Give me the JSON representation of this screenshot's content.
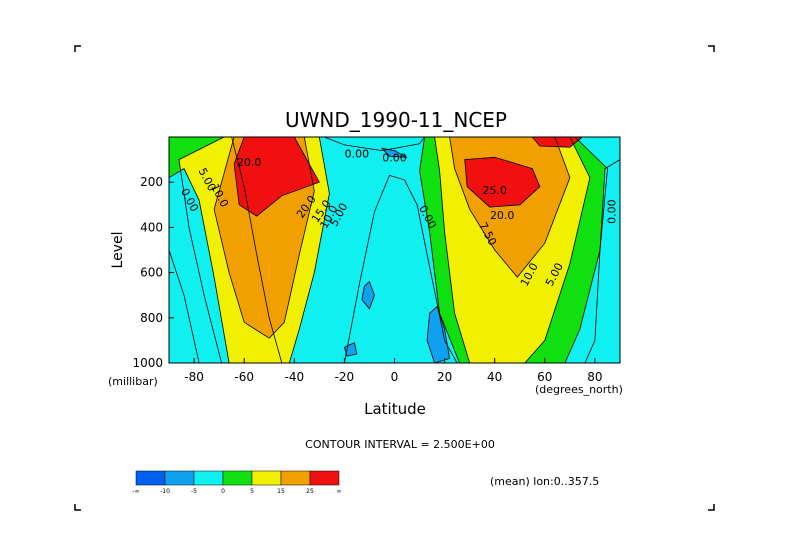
{
  "chart_data": {
    "type": "heatmap",
    "subtype": "filled-contour",
    "title": "UWND_1990-11_NCEP",
    "xlabel": "Latitude",
    "ylabel": "Level",
    "x_units": "(degrees_north)",
    "y_units": "(millibar)",
    "xlim": [
      -90,
      90
    ],
    "ylim": [
      1000,
      0
    ],
    "x_ticks": [
      "-80",
      "-60",
      "-40",
      "-20",
      "0",
      "20",
      "40",
      "60",
      "80"
    ],
    "y_ticks": [
      "200",
      "400",
      "600",
      "800",
      "1000"
    ],
    "contour_interval_text": "CONTOUR INTERVAL = 2.500E+00",
    "footer_text": "(mean) lon:0..357.5",
    "color_scale": {
      "colors": [
        "#0060f0",
        "#10a0f0",
        "#10f0f0",
        "#10e010",
        "#f0f000",
        "#f0a000",
        "#f01010"
      ],
      "tick_labels": [
        "-∞",
        "-10",
        "-5",
        "0",
        "5",
        "15",
        "25",
        "∞"
      ]
    },
    "contour_labels": [
      {
        "text": "0.00",
        "lat": -82,
        "level": 280,
        "angle": 62
      },
      {
        "text": "5.00",
        "lat": -75,
        "level": 190,
        "angle": 62
      },
      {
        "text": "10.0",
        "lat": -70,
        "level": 260,
        "angle": 62
      },
      {
        "text": "20.0",
        "lat": -58,
        "level": 115,
        "angle": 0
      },
      {
        "text": "20.0",
        "lat": -35,
        "level": 310,
        "angle": -55
      },
      {
        "text": "15.0",
        "lat": -29,
        "level": 330,
        "angle": -55
      },
      {
        "text": "10.0",
        "lat": -26,
        "level": 355,
        "angle": -62
      },
      {
        "text": "5.00",
        "lat": -22,
        "level": 345,
        "angle": -62
      },
      {
        "text": "0.00",
        "lat": -15,
        "level": 78,
        "angle": 0
      },
      {
        "text": "0.00",
        "lat": 0,
        "level": 95,
        "angle": 0
      },
      {
        "text": "0.00",
        "lat": 13,
        "level": 355,
        "angle": 62
      },
      {
        "text": "25.0",
        "lat": 40,
        "level": 240,
        "angle": 0
      },
      {
        "text": "20.0",
        "lat": 43,
        "level": 350,
        "angle": 0
      },
      {
        "text": "7.50",
        "lat": 37,
        "level": 430,
        "angle": 62
      },
      {
        "text": "10.0",
        "lat": 54,
        "level": 610,
        "angle": -62
      },
      {
        "text": "5.00",
        "lat": 64,
        "level": 610,
        "angle": -62
      },
      {
        "text": "0.00",
        "lat": 87,
        "level": 330,
        "angle": -90
      }
    ],
    "regions": [
      {
        "level_class": "0 to 5",
        "color": "#10e010",
        "polygon": [
          [
            -90,
            0
          ],
          [
            -65,
            0
          ],
          [
            -60,
            220
          ],
          [
            -55,
            520
          ],
          [
            -50,
            800
          ],
          [
            -45,
            1000
          ],
          [
            -78,
            1000
          ],
          [
            -84,
            700
          ],
          [
            -90,
            500
          ]
        ]
      },
      {
        "level_class": "5 to 15",
        "color": "#f0f000",
        "polygon": [
          [
            -68,
            0
          ],
          [
            -30,
            0
          ],
          [
            -26,
            250
          ],
          [
            -32,
            600
          ],
          [
            -38,
            850
          ],
          [
            -42,
            1000
          ],
          [
            -69,
            1000
          ],
          [
            -76,
            700
          ],
          [
            -82,
            400
          ],
          [
            -86,
            100
          ]
        ]
      },
      {
        "level_class": "15 to 25",
        "color": "#f0a000",
        "polygon": [
          [
            -64,
            0
          ],
          [
            -36,
            0
          ],
          [
            -32,
            240
          ],
          [
            -38,
            520
          ],
          [
            -44,
            820
          ],
          [
            -50,
            890
          ],
          [
            -60,
            820
          ],
          [
            -66,
            600
          ],
          [
            -72,
            320
          ]
        ]
      },
      {
        "level_class": ">25",
        "color": "#f01010",
        "polygon": [
          [
            -60,
            0
          ],
          [
            -40,
            0
          ],
          [
            -30,
            200
          ],
          [
            -45,
            260
          ],
          [
            -55,
            350
          ],
          [
            -62,
            300
          ],
          [
            -64,
            120
          ]
        ]
      },
      {
        "level_class": "-5 to 0",
        "color": "#10f0f0",
        "polygon": [
          [
            -90,
            180
          ],
          [
            -84,
            140
          ],
          [
            -78,
            280
          ],
          [
            -72,
            620
          ],
          [
            -66,
            1000
          ],
          [
            -90,
            1000
          ]
        ]
      },
      {
        "level_class": "-5 to 0",
        "color": "#10f0f0",
        "polygon": [
          [
            -20,
            1000
          ],
          [
            -14,
            650
          ],
          [
            -8,
            330
          ],
          [
            -2,
            170
          ],
          [
            4,
            190
          ],
          [
            9,
            300
          ],
          [
            13,
            520
          ],
          [
            20,
            900
          ],
          [
            25,
            1000
          ]
        ]
      },
      {
        "level_class": "0 to 5",
        "color": "#10e010",
        "polygon": [
          [
            12,
            0
          ],
          [
            72,
            0
          ],
          [
            85,
            140
          ],
          [
            82,
            500
          ],
          [
            74,
            850
          ],
          [
            68,
            1000
          ],
          [
            26,
            1000
          ],
          [
            18,
            780
          ],
          [
            14,
            420
          ],
          [
            10,
            150
          ]
        ]
      },
      {
        "level_class": "5 to 15",
        "color": "#f0f000",
        "polygon": [
          [
            16,
            0
          ],
          [
            70,
            0
          ],
          [
            78,
            180
          ],
          [
            70,
            560
          ],
          [
            60,
            900
          ],
          [
            52,
            1000
          ],
          [
            30,
            1000
          ],
          [
            24,
            780
          ],
          [
            20,
            420
          ],
          [
            18,
            150
          ]
        ]
      },
      {
        "level_class": "15 to 25",
        "color": "#f0a000",
        "polygon": [
          [
            22,
            0
          ],
          [
            64,
            0
          ],
          [
            70,
            180
          ],
          [
            60,
            470
          ],
          [
            49,
            620
          ],
          [
            40,
            500
          ],
          [
            30,
            320
          ],
          [
            24,
            140
          ]
        ]
      },
      {
        "level_class": ">25",
        "color": "#f01010",
        "polygon": [
          [
            28,
            100
          ],
          [
            40,
            90
          ],
          [
            55,
            140
          ],
          [
            58,
            220
          ],
          [
            50,
            300
          ],
          [
            38,
            310
          ],
          [
            29,
            220
          ]
        ]
      },
      {
        "level_class": ">25",
        "color": "#f01010",
        "polygon": [
          [
            55,
            0
          ],
          [
            75,
            0
          ],
          [
            70,
            45
          ],
          [
            58,
            40
          ]
        ]
      },
      {
        "level_class": "-5 to 0",
        "color": "#10f0f0",
        "polygon": [
          [
            80,
            900
          ],
          [
            82,
            500
          ],
          [
            84,
            140
          ],
          [
            90,
            100
          ],
          [
            90,
            1000
          ],
          [
            76,
            1000
          ]
        ]
      },
      {
        "level_class": "-5 to 0",
        "color": "#10f0f0",
        "polygon": [
          [
            -28,
            0
          ],
          [
            12,
            0
          ],
          [
            10,
            30
          ],
          [
            -5,
            60
          ],
          [
            -20,
            35
          ]
        ]
      },
      {
        "level_class": "-10 to -5",
        "color": "#10a0f0",
        "polygon": [
          [
            -12,
            660
          ],
          [
            -10,
            640
          ],
          [
            -8,
            700
          ],
          [
            -10,
            760
          ],
          [
            -13,
            720
          ]
        ]
      },
      {
        "level_class": "-10 to -5",
        "color": "#10a0f0",
        "polygon": [
          [
            14,
            780
          ],
          [
            17,
            750
          ],
          [
            20,
            850
          ],
          [
            22,
            980
          ],
          [
            16,
            1000
          ],
          [
            13,
            900
          ]
        ]
      },
      {
        "level_class": "-10 to -5",
        "color": "#10a0f0",
        "polygon": [
          [
            -20,
            930
          ],
          [
            -16,
            910
          ],
          [
            -15,
            960
          ],
          [
            -19,
            970
          ]
        ]
      },
      {
        "level_class": "-10 to -5",
        "color": "#10a0f0",
        "polygon": [
          [
            -5,
            50
          ],
          [
            0,
            60
          ],
          [
            5,
            90
          ],
          [
            -2,
            85
          ]
        ]
      }
    ]
  }
}
